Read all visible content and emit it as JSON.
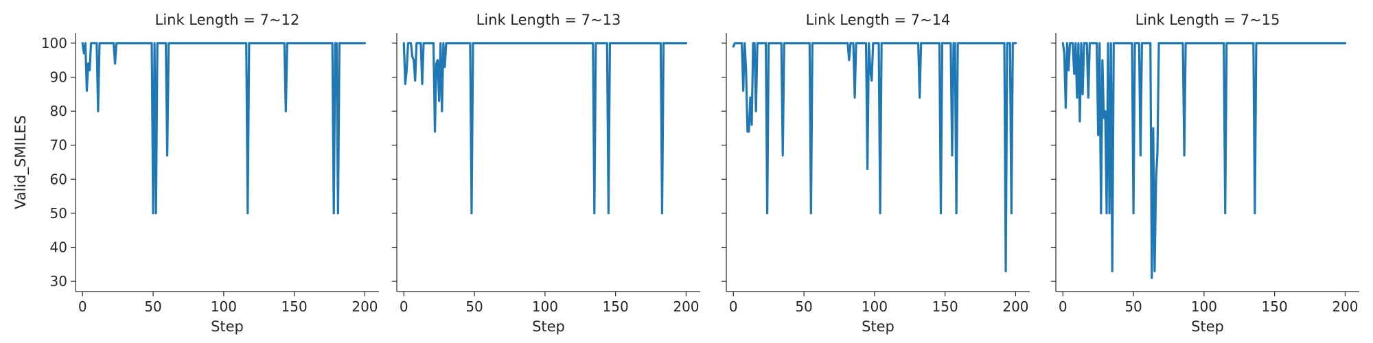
{
  "chart_data": {
    "type": "line",
    "ylabel": "Valid_SMILES",
    "xlabel": "Step",
    "xlim": [
      -5,
      210
    ],
    "ylim": [
      27,
      103
    ],
    "xticks": [
      0,
      50,
      100,
      150,
      200
    ],
    "yticks": [
      30,
      40,
      50,
      60,
      70,
      80,
      90,
      100
    ],
    "xtick_labels": [
      "0",
      "50",
      "100",
      "150",
      "200"
    ],
    "ytick_labels": [
      "30",
      "40",
      "50",
      "60",
      "70",
      "80",
      "90",
      "100"
    ],
    "line_color": "#1f77b4",
    "grid": false,
    "panels": [
      {
        "title": "Link Length = 7~12",
        "x": [
          0,
          1,
          2,
          3,
          4,
          5,
          6,
          7,
          8,
          9,
          10,
          11,
          12,
          13,
          14,
          15,
          16,
          17,
          18,
          19,
          20,
          21,
          22,
          23,
          24,
          25,
          26,
          30,
          40,
          48,
          49,
          50,
          51,
          52,
          53,
          54,
          55,
          56,
          57,
          58,
          59,
          60,
          61,
          62,
          65,
          80,
          100,
          115,
          116,
          117,
          118,
          119,
          120,
          130,
          140,
          142,
          143,
          144,
          145,
          146,
          150,
          160,
          170,
          175,
          176,
          177,
          178,
          179,
          180,
          181,
          182,
          183,
          184,
          190,
          200
        ],
        "y": [
          100,
          97,
          100,
          86,
          94,
          92,
          100,
          100,
          100,
          100,
          100,
          80,
          100,
          100,
          100,
          100,
          100,
          100,
          100,
          100,
          100,
          100,
          100,
          94,
          100,
          100,
          100,
          100,
          100,
          100,
          100,
          50,
          100,
          50,
          100,
          100,
          100,
          100,
          100,
          100,
          100,
          67,
          100,
          100,
          100,
          100,
          100,
          100,
          100,
          50,
          100,
          100,
          100,
          100,
          100,
          100,
          100,
          80,
          100,
          100,
          100,
          100,
          100,
          100,
          100,
          100,
          50,
          100,
          100,
          50,
          100,
          100,
          100,
          100,
          100
        ]
      },
      {
        "title": "Link Length = 7~13",
        "x": [
          0,
          1,
          2,
          3,
          4,
          5,
          6,
          7,
          8,
          9,
          10,
          11,
          12,
          13,
          14,
          15,
          16,
          17,
          18,
          19,
          20,
          21,
          22,
          23,
          24,
          25,
          26,
          27,
          28,
          29,
          30,
          31,
          32,
          33,
          34,
          35,
          40,
          46,
          47,
          48,
          49,
          50,
          60,
          80,
          100,
          120,
          134,
          135,
          136,
          137,
          144,
          145,
          146,
          147,
          150,
          170,
          182,
          183,
          184,
          190,
          200
        ],
        "y": [
          100,
          88,
          92,
          100,
          100,
          100,
          96,
          95,
          89,
          100,
          100,
          100,
          100,
          88,
          100,
          100,
          100,
          100,
          100,
          100,
          100,
          100,
          74,
          94,
          95,
          83,
          100,
          80,
          100,
          93,
          100,
          100,
          100,
          100,
          100,
          100,
          100,
          100,
          100,
          50,
          100,
          100,
          100,
          100,
          100,
          100,
          100,
          50,
          100,
          100,
          100,
          50,
          100,
          100,
          100,
          100,
          100,
          50,
          100,
          100,
          100
        ]
      },
      {
        "title": "Link Length = 7~14",
        "x": [
          0,
          1,
          2,
          3,
          4,
          5,
          6,
          7,
          8,
          9,
          10,
          11,
          12,
          13,
          14,
          15,
          16,
          17,
          18,
          19,
          20,
          21,
          22,
          23,
          24,
          25,
          26,
          30,
          33,
          34,
          35,
          36,
          40,
          50,
          54,
          55,
          56,
          60,
          70,
          80,
          81,
          82,
          83,
          84,
          85,
          86,
          87,
          88,
          89,
          90,
          91,
          92,
          93,
          94,
          95,
          96,
          97,
          98,
          99,
          100,
          101,
          102,
          103,
          104,
          105,
          110,
          120,
          130,
          131,
          132,
          133,
          140,
          145,
          146,
          147,
          148,
          150,
          154,
          155,
          156,
          157,
          158,
          159,
          160,
          170,
          190,
          191,
          192,
          193,
          194,
          195,
          196,
          197,
          198,
          200
        ],
        "y": [
          99,
          100,
          100,
          100,
          100,
          100,
          100,
          86,
          100,
          92,
          74,
          74,
          84,
          76,
          100,
          100,
          80,
          100,
          100,
          100,
          100,
          100,
          100,
          100,
          50,
          100,
          100,
          100,
          100,
          100,
          67,
          100,
          100,
          100,
          100,
          50,
          100,
          100,
          100,
          100,
          100,
          95,
          100,
          100,
          100,
          84,
          100,
          100,
          100,
          100,
          100,
          100,
          100,
          100,
          63,
          100,
          92,
          89,
          100,
          100,
          100,
          100,
          100,
          50,
          100,
          100,
          100,
          100,
          100,
          84,
          100,
          100,
          100,
          100,
          50,
          100,
          100,
          100,
          67,
          100,
          100,
          50,
          100,
          100,
          100,
          100,
          100,
          100,
          33,
          100,
          100,
          100,
          50,
          100,
          100
        ]
      },
      {
        "title": "Link Length = 7~15",
        "x": [
          0,
          1,
          2,
          3,
          4,
          5,
          6,
          7,
          8,
          9,
          10,
          11,
          12,
          13,
          14,
          15,
          16,
          17,
          18,
          19,
          20,
          21,
          22,
          23,
          24,
          25,
          26,
          27,
          28,
          29,
          30,
          31,
          32,
          33,
          34,
          35,
          36,
          37,
          38,
          39,
          40,
          41,
          42,
          43,
          44,
          45,
          46,
          47,
          48,
          49,
          50,
          51,
          52,
          53,
          54,
          55,
          56,
          57,
          58,
          59,
          60,
          61,
          62,
          63,
          64,
          65,
          66,
          67,
          68,
          69,
          70,
          75,
          85,
          86,
          87,
          90,
          100,
          114,
          115,
          116,
          120,
          135,
          136,
          137,
          150,
          170,
          200
        ],
        "y": [
          100,
          97,
          81,
          100,
          92,
          100,
          100,
          100,
          91,
          100,
          84,
          100,
          77,
          100,
          85,
          100,
          100,
          100,
          84,
          100,
          100,
          100,
          100,
          100,
          100,
          73,
          100,
          50,
          95,
          78,
          80,
          50,
          100,
          50,
          100,
          33,
          100,
          100,
          100,
          100,
          100,
          100,
          100,
          100,
          100,
          100,
          100,
          100,
          100,
          100,
          50,
          100,
          100,
          100,
          100,
          67,
          100,
          100,
          100,
          100,
          100,
          100,
          100,
          31,
          75,
          33,
          60,
          68,
          100,
          100,
          100,
          100,
          100,
          67,
          100,
          100,
          100,
          100,
          50,
          100,
          100,
          100,
          50,
          100,
          100,
          100,
          100
        ]
      }
    ]
  }
}
